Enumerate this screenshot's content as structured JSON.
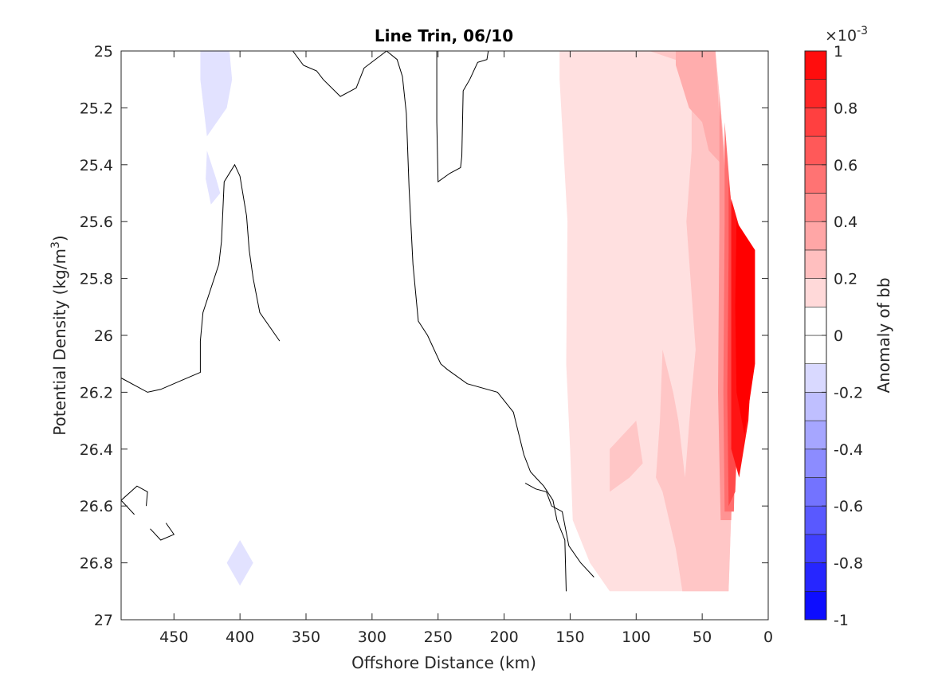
{
  "chart_data": {
    "type": "contour",
    "title": "Line Trin, 06/10",
    "xlabel": "Offshore Distance (km)",
    "ylabel": "Potential Density (kg/m",
    "ylabel_sup": "3",
    "ylabel_end": ")",
    "xlim": [
      490,
      0
    ],
    "ylim": [
      27,
      25
    ],
    "x_ticks": [
      450,
      400,
      350,
      300,
      250,
      200,
      150,
      100,
      50,
      0
    ],
    "x_tick_labels": [
      "450",
      "400",
      "350",
      "300",
      "250",
      "200",
      "150",
      "100",
      "50",
      "0"
    ],
    "y_ticks": [
      25,
      25.2,
      25.4,
      25.6,
      25.8,
      26,
      26.2,
      26.4,
      26.6,
      26.8,
      27
    ],
    "y_tick_labels": [
      "25",
      "25.2",
      "25.4",
      "25.6",
      "25.8",
      "26",
      "26.2",
      "26.4",
      "26.6",
      "26.8",
      "27"
    ],
    "colorbar": {
      "label": "Anomaly of bb",
      "exponent_base": "×10",
      "exponent_power": "-3",
      "range": [
        -1,
        1
      ],
      "levels": [
        -1,
        -0.9,
        -0.8,
        -0.7,
        -0.6,
        -0.5,
        -0.4,
        -0.3,
        -0.2,
        -0.1,
        0,
        0.1,
        0.2,
        0.3,
        0.4,
        0.5,
        0.6,
        0.7,
        0.8,
        0.9,
        1
      ],
      "ticks": [
        1,
        0.8,
        0.6,
        0.4,
        0.2,
        0,
        -0.2,
        -0.4,
        -0.6,
        -0.8,
        -1
      ],
      "tick_labels": [
        "1",
        "0.8",
        "0.6",
        "0.4",
        "0.2",
        "0",
        "-0.2",
        "-0.4",
        "-0.6",
        "-0.8",
        "-1"
      ]
    },
    "filled_regions": [
      {
        "level": 0.15,
        "color": "#ffe0e0",
        "points": [
          [
            158,
            25
          ],
          [
            40,
            25
          ],
          [
            30,
            25.5
          ],
          [
            25,
            26.2
          ],
          [
            30,
            26.9
          ],
          [
            120,
            26.9
          ],
          [
            135,
            26.8
          ],
          [
            148,
            26.65
          ],
          [
            150,
            26.4
          ],
          [
            153,
            26.1
          ],
          [
            152,
            25.6
          ],
          [
            158,
            25.1
          ]
        ]
      },
      {
        "level": 0.25,
        "color": "#ffc6c6",
        "points": [
          [
            90,
            25
          ],
          [
            40,
            25
          ],
          [
            30,
            25.5
          ],
          [
            25,
            26.2
          ],
          [
            30,
            26.9
          ],
          [
            65,
            26.9
          ],
          [
            70,
            26.75
          ],
          [
            80,
            26.55
          ],
          [
            85,
            26.5
          ],
          [
            82,
            26.3
          ],
          [
            80,
            26.05
          ],
          [
            72,
            26.2
          ],
          [
            68,
            26.3
          ],
          [
            63,
            26.5
          ],
          [
            58,
            26.2
          ],
          [
            55,
            26.05
          ],
          [
            62,
            25.6
          ],
          [
            58,
            25.35
          ],
          [
            58,
            25.05
          ]
        ]
      },
      {
        "level": 0.25,
        "color": "#ffc6c6",
        "points": [
          [
            120,
            26.4
          ],
          [
            100,
            26.3
          ],
          [
            95,
            26.45
          ],
          [
            105,
            26.5
          ],
          [
            120,
            26.55
          ]
        ]
      },
      {
        "level": 0.35,
        "color": "#ffadad",
        "points": [
          [
            70,
            25
          ],
          [
            40,
            25
          ],
          [
            35,
            25.4
          ],
          [
            45,
            25.35
          ],
          [
            50,
            25.25
          ],
          [
            60,
            25.2
          ],
          [
            70,
            25.05
          ]
        ]
      },
      {
        "level": 0.45,
        "color": "#ff9393",
        "points": [
          [
            37,
            25.15
          ],
          [
            30,
            25.6
          ],
          [
            26,
            26.2
          ],
          [
            28,
            26.65
          ],
          [
            36,
            26.65
          ],
          [
            38,
            26.2
          ],
          [
            37,
            25.6
          ]
        ]
      },
      {
        "level": 0.6,
        "color": "#ff6e6e",
        "points": [
          [
            33,
            25.25
          ],
          [
            27,
            25.6
          ],
          [
            24,
            26.2
          ],
          [
            26,
            26.62
          ],
          [
            33,
            26.62
          ],
          [
            34,
            26.2
          ],
          [
            33,
            25.6
          ]
        ]
      },
      {
        "level": 0.75,
        "color": "#ff4a4a",
        "points": [
          [
            30,
            25.45
          ],
          [
            24,
            25.7
          ],
          [
            22,
            26.2
          ],
          [
            25,
            26.55
          ],
          [
            30,
            26.6
          ],
          [
            31,
            26.2
          ],
          [
            30,
            25.7
          ]
        ]
      },
      {
        "level": 0.9,
        "color": "#ff1414",
        "points": [
          [
            28,
            25.52
          ],
          [
            20,
            25.65
          ],
          [
            12,
            26.05
          ],
          [
            15,
            26.3
          ],
          [
            22,
            26.5
          ],
          [
            28,
            26.4
          ],
          [
            28,
            26.0
          ],
          [
            28,
            25.7
          ]
        ]
      },
      {
        "level": 1.0,
        "color": "#ff0000",
        "points": [
          [
            24,
            25.6
          ],
          [
            10,
            25.7
          ],
          [
            10,
            26.1
          ],
          [
            18,
            26.35
          ],
          [
            24,
            26.2
          ],
          [
            25,
            25.9
          ]
        ]
      },
      {
        "level": -0.15,
        "color": "#e2e2ff",
        "points": [
          [
            430,
            25
          ],
          [
            408,
            25
          ],
          [
            406,
            25.1
          ],
          [
            410,
            25.2
          ],
          [
            425,
            25.3
          ],
          [
            430,
            25.1
          ]
        ]
      },
      {
        "level": -0.15,
        "color": "#e2e2ff",
        "points": [
          [
            425,
            25.35
          ],
          [
            418,
            25.45
          ],
          [
            415,
            25.5
          ],
          [
            422,
            25.54
          ],
          [
            426,
            25.45
          ]
        ]
      },
      {
        "level": -0.15,
        "color": "#e2e2ff",
        "points": [
          [
            400,
            26.72
          ],
          [
            410,
            26.8
          ],
          [
            400,
            26.88
          ],
          [
            390,
            26.8
          ]
        ]
      }
    ],
    "zero_contours": [
      [
        [
          490,
          26.15
        ],
        [
          470,
          26.2
        ],
        [
          460,
          26.19
        ],
        [
          445,
          26.16
        ],
        [
          430,
          26.13
        ],
        [
          430,
          26.02
        ],
        [
          428,
          25.92
        ],
        [
          416,
          25.75
        ],
        [
          414,
          25.67
        ],
        [
          412,
          25.46
        ],
        [
          404,
          25.4
        ],
        [
          400,
          25.44
        ],
        [
          395,
          25.58
        ],
        [
          393,
          25.7
        ],
        [
          390,
          25.8
        ],
        [
          385,
          25.92
        ],
        [
          370,
          26.02
        ]
      ],
      [
        [
          360,
          25
        ],
        [
          352,
          25.05
        ],
        [
          342,
          25.07
        ],
        [
          337,
          25.1
        ],
        [
          324,
          25.16
        ],
        [
          312,
          25.13
        ],
        [
          306,
          25.06
        ],
        [
          289,
          25
        ],
        [
          281,
          25.03
        ],
        [
          277,
          25.09
        ],
        [
          274,
          25.22
        ],
        [
          272,
          25.48
        ],
        [
          269,
          25.75
        ],
        [
          265,
          25.95
        ],
        [
          258,
          26.0
        ],
        [
          248,
          26.1
        ],
        [
          243,
          26.12
        ],
        [
          228,
          26.17
        ],
        [
          205,
          26.2
        ],
        [
          193,
          26.27
        ],
        [
          185,
          26.42
        ],
        [
          180,
          26.48
        ],
        [
          176,
          26.5
        ],
        [
          170,
          26.53
        ],
        [
          163,
          26.58
        ],
        [
          160,
          26.65
        ],
        [
          154,
          26.72
        ],
        [
          153,
          26.9
        ]
      ],
      [
        [
          184,
          26.52
        ],
        [
          176,
          26.54
        ],
        [
          168,
          26.55
        ],
        [
          164,
          26.6
        ],
        [
          156,
          26.62
        ],
        [
          151,
          26.74
        ],
        [
          142,
          26.8
        ],
        [
          138,
          26.82
        ],
        [
          132,
          26.85
        ]
      ],
      [
        [
          212,
          25.0
        ],
        [
          213,
          25.03
        ],
        [
          220,
          25.04
        ],
        [
          226,
          25.1
        ],
        [
          231,
          25.14
        ],
        [
          232,
          25.37
        ],
        [
          233,
          25.41
        ],
        [
          241,
          25.43
        ],
        [
          250,
          25.46
        ],
        [
          251,
          25.25
        ],
        [
          251,
          25.0
        ]
      ],
      [
        [
          480,
          26.63
        ],
        [
          490,
          26.58
        ],
        [
          478,
          26.53
        ],
        [
          470,
          26.55
        ],
        [
          471,
          26.6
        ]
      ],
      [
        [
          468,
          26.68
        ],
        [
          460,
          26.72
        ],
        [
          450,
          26.7
        ],
        [
          456,
          26.66
        ]
      ]
    ]
  }
}
